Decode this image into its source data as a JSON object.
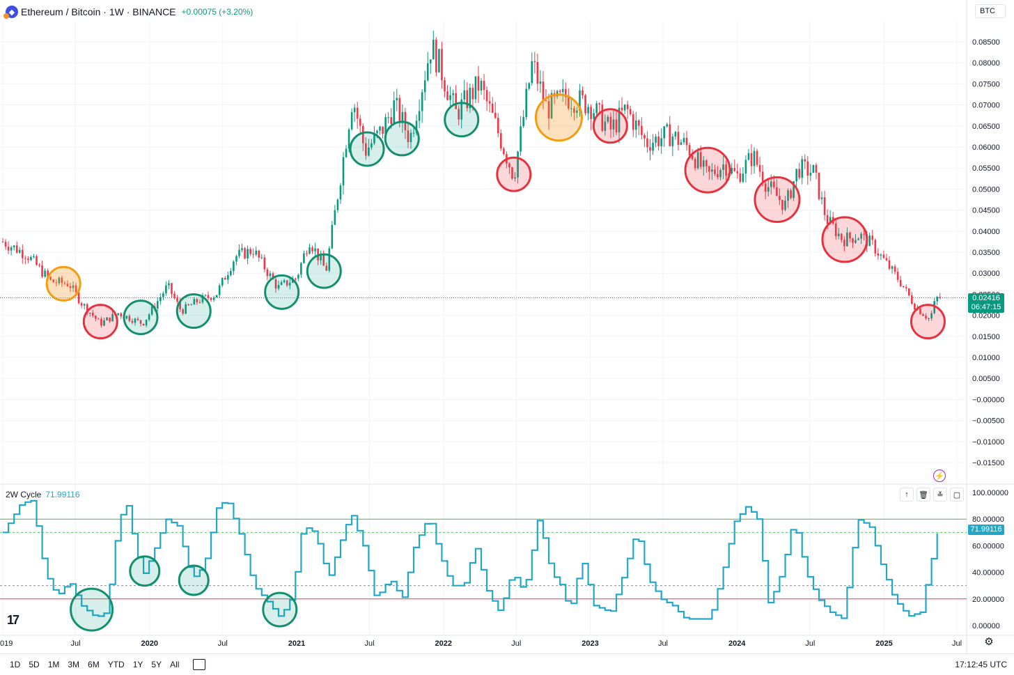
{
  "header": {
    "symbol": "Ethereum",
    "sep": " / ",
    "quote_name": "Bitcoin",
    "meta": " · 1W · BINANCE",
    "change": "+0.00075 (+3.20%)",
    "currency_button": "BTC",
    "logo_icon": "eth-btc-pair-icon"
  },
  "price_axis": {
    "labels": [
      "0.08500",
      "0.08000",
      "0.07500",
      "0.07000",
      "0.06500",
      "0.06000",
      "0.05500",
      "0.05000",
      "0.04500",
      "0.04000",
      "0.03500",
      "0.03000",
      "0.02500",
      "0.02000",
      "0.01500",
      "0.01000",
      "0.00500",
      "−0.00000",
      "−0.00500",
      "−0.01000",
      "−0.01500"
    ],
    "last_price": "0.02416",
    "countdown": "06:47:15"
  },
  "indicator": {
    "name": "2W Cycle",
    "value": "71.99116",
    "axis_labels": [
      "100.00000",
      "80.00000",
      "60.00000",
      "40.00000",
      "20.00000",
      "0.00000"
    ],
    "tools": [
      "arrow-up-icon",
      "trash-icon",
      "collapse-icon",
      "maximize-icon"
    ]
  },
  "time_axis": {
    "labels": [
      "019",
      "Jul",
      "2020",
      "Jul",
      "2021",
      "Jul",
      "2022",
      "Jul",
      "2023",
      "Jul",
      "2024",
      "Jul",
      "2025",
      "Jul"
    ]
  },
  "bottom_bar": {
    "ranges": [
      "1D",
      "5D",
      "1M",
      "3M",
      "6M",
      "YTD",
      "1Y",
      "5Y",
      "All"
    ],
    "clock": "17:12:45 UTC"
  },
  "colors": {
    "up": "#089981",
    "down": "#f23645",
    "orange": "#f7931a",
    "cycle": "#22a7c9",
    "upper_line": "#4caf50",
    "lower_line": "#f23645"
  },
  "chart_data": [
    {
      "type": "candlestick",
      "title": "Ethereum / Bitcoin · 1W · BINANCE",
      "x_range": [
        "2019-01",
        "2025-07"
      ],
      "ylim": [
        -0.017,
        0.0875
      ],
      "grid": true,
      "close_anchors": [
        {
          "date": "2019-01-01",
          "close": 0.0375
        },
        {
          "date": "2019-03-01",
          "close": 0.0345
        },
        {
          "date": "2019-05-01",
          "close": 0.028
        },
        {
          "date": "2019-06-15",
          "close": 0.0275
        },
        {
          "date": "2019-07-15",
          "close": 0.023
        },
        {
          "date": "2019-09-01",
          "close": 0.018
        },
        {
          "date": "2019-10-15",
          "close": 0.0205
        },
        {
          "date": "2019-12-15",
          "close": 0.018
        },
        {
          "date": "2020-02-15",
          "close": 0.027
        },
        {
          "date": "2020-03-20",
          "close": 0.021
        },
        {
          "date": "2020-05-01",
          "close": 0.0235
        },
        {
          "date": "2020-06-15",
          "close": 0.025
        },
        {
          "date": "2020-08-01",
          "close": 0.034
        },
        {
          "date": "2020-09-15",
          "close": 0.0355
        },
        {
          "date": "2020-11-15",
          "close": 0.0265
        },
        {
          "date": "2021-01-01",
          "close": 0.029
        },
        {
          "date": "2021-02-01",
          "close": 0.038
        },
        {
          "date": "2021-03-15",
          "close": 0.0305
        },
        {
          "date": "2021-04-20",
          "close": 0.053
        },
        {
          "date": "2021-05-20",
          "close": 0.072
        },
        {
          "date": "2021-06-20",
          "close": 0.059
        },
        {
          "date": "2021-08-01",
          "close": 0.064
        },
        {
          "date": "2021-09-01",
          "close": 0.07
        },
        {
          "date": "2021-10-10",
          "close": 0.062
        },
        {
          "date": "2021-12-01",
          "close": 0.084
        },
        {
          "date": "2021-12-20",
          "close": 0.08
        },
        {
          "date": "2022-02-01",
          "close": 0.068
        },
        {
          "date": "2022-04-01",
          "close": 0.075
        },
        {
          "date": "2022-05-15",
          "close": 0.064
        },
        {
          "date": "2022-06-25",
          "close": 0.053
        },
        {
          "date": "2022-08-10",
          "close": 0.08
        },
        {
          "date": "2022-09-15",
          "close": 0.069
        },
        {
          "date": "2022-11-01",
          "close": 0.072
        },
        {
          "date": "2023-01-01",
          "close": 0.07
        },
        {
          "date": "2023-02-20",
          "close": 0.064
        },
        {
          "date": "2023-04-01",
          "close": 0.069
        },
        {
          "date": "2023-05-20",
          "close": 0.061
        },
        {
          "date": "2023-07-20",
          "close": 0.063
        },
        {
          "date": "2023-09-01",
          "close": 0.06
        },
        {
          "date": "2023-10-20",
          "close": 0.053
        },
        {
          "date": "2023-12-01",
          "close": 0.056
        },
        {
          "date": "2024-01-01",
          "close": 0.053
        },
        {
          "date": "2024-02-10",
          "close": 0.058
        },
        {
          "date": "2024-03-15",
          "close": 0.051
        },
        {
          "date": "2024-05-01",
          "close": 0.046
        },
        {
          "date": "2024-06-01",
          "close": 0.055
        },
        {
          "date": "2024-07-10",
          "close": 0.054
        },
        {
          "date": "2024-08-10",
          "close": 0.043
        },
        {
          "date": "2024-09-20",
          "close": 0.038
        },
        {
          "date": "2024-11-01",
          "close": 0.039
        },
        {
          "date": "2024-12-01",
          "close": 0.037
        },
        {
          "date": "2025-01-01",
          "close": 0.033
        },
        {
          "date": "2025-02-10",
          "close": 0.028
        },
        {
          "date": "2025-03-20",
          "close": 0.022
        },
        {
          "date": "2025-04-25",
          "close": 0.019
        },
        {
          "date": "2025-05-10",
          "close": 0.024
        },
        {
          "date": "2025-05-22",
          "close": 0.0242
        }
      ],
      "last_price": 0.02416,
      "highlight_circles": [
        {
          "date": "2019-06-01",
          "price": 0.0275,
          "color": "orange"
        },
        {
          "date": "2019-09-01",
          "price": 0.0185,
          "color": "red"
        },
        {
          "date": "2019-12-10",
          "price": 0.0195,
          "color": "green"
        },
        {
          "date": "2020-04-20",
          "price": 0.021,
          "color": "green"
        },
        {
          "date": "2020-11-25",
          "price": 0.0255,
          "color": "green"
        },
        {
          "date": "2021-03-10",
          "price": 0.0305,
          "color": "green"
        },
        {
          "date": "2021-06-25",
          "price": 0.0595,
          "color": "green"
        },
        {
          "date": "2021-09-20",
          "price": 0.062,
          "color": "green"
        },
        {
          "date": "2022-02-15",
          "price": 0.0665,
          "color": "green"
        },
        {
          "date": "2022-06-25",
          "price": 0.0535,
          "color": "red"
        },
        {
          "date": "2022-10-15",
          "price": 0.067,
          "color": "orange"
        },
        {
          "date": "2023-02-20",
          "price": 0.065,
          "color": "red"
        },
        {
          "date": "2023-10-20",
          "price": 0.0545,
          "color": "red"
        },
        {
          "date": "2024-04-10",
          "price": 0.0475,
          "color": "red"
        },
        {
          "date": "2024-09-25",
          "price": 0.038,
          "color": "red"
        },
        {
          "date": "2025-04-20",
          "price": 0.0185,
          "color": "red"
        }
      ]
    },
    {
      "type": "line",
      "title": "2W Cycle",
      "ylim": [
        -5,
        102
      ],
      "reference_lines": [
        80,
        70,
        30,
        20
      ],
      "series": [
        {
          "name": "2W Cycle",
          "points": [
            {
              "date": "2019-01-01",
              "y": 70
            },
            {
              "date": "2019-02-15",
              "y": 92
            },
            {
              "date": "2019-03-15",
              "y": 94
            },
            {
              "date": "2019-04-15",
              "y": 40
            },
            {
              "date": "2019-05-15",
              "y": 22
            },
            {
              "date": "2019-06-15",
              "y": 33
            },
            {
              "date": "2019-07-15",
              "y": 15
            },
            {
              "date": "2019-08-20",
              "y": 6
            },
            {
              "date": "2019-09-15",
              "y": 10
            },
            {
              "date": "2019-10-15",
              "y": 80
            },
            {
              "date": "2019-11-05",
              "y": 90
            },
            {
              "date": "2019-11-25",
              "y": 60
            },
            {
              "date": "2019-12-15",
              "y": 38
            },
            {
              "date": "2020-01-10",
              "y": 55
            },
            {
              "date": "2020-02-10",
              "y": 80
            },
            {
              "date": "2020-03-10",
              "y": 75
            },
            {
              "date": "2020-04-15",
              "y": 35
            },
            {
              "date": "2020-05-15",
              "y": 45
            },
            {
              "date": "2020-06-15",
              "y": 88
            },
            {
              "date": "2020-07-10",
              "y": 95
            },
            {
              "date": "2020-08-10",
              "y": 70
            },
            {
              "date": "2020-09-15",
              "y": 30
            },
            {
              "date": "2020-10-20",
              "y": 18
            },
            {
              "date": "2020-11-20",
              "y": 6
            },
            {
              "date": "2020-12-20",
              "y": 22
            },
            {
              "date": "2021-01-15",
              "y": 75
            },
            {
              "date": "2021-02-15",
              "y": 70
            },
            {
              "date": "2021-03-20",
              "y": 35
            },
            {
              "date": "2021-04-15",
              "y": 60
            },
            {
              "date": "2021-05-15",
              "y": 85
            },
            {
              "date": "2021-06-15",
              "y": 60
            },
            {
              "date": "2021-07-15",
              "y": 20
            },
            {
              "date": "2021-08-20",
              "y": 35
            },
            {
              "date": "2021-09-20",
              "y": 20
            },
            {
              "date": "2021-10-20",
              "y": 60
            },
            {
              "date": "2021-11-25",
              "y": 82
            },
            {
              "date": "2021-12-20",
              "y": 55
            },
            {
              "date": "2022-01-20",
              "y": 30
            },
            {
              "date": "2022-02-20",
              "y": 30
            },
            {
              "date": "2022-03-20",
              "y": 60
            },
            {
              "date": "2022-04-20",
              "y": 25
            },
            {
              "date": "2022-05-20",
              "y": 10
            },
            {
              "date": "2022-06-20",
              "y": 40
            },
            {
              "date": "2022-07-20",
              "y": 25
            },
            {
              "date": "2022-08-25",
              "y": 82
            },
            {
              "date": "2022-09-25",
              "y": 40
            },
            {
              "date": "2022-10-20",
              "y": 30
            },
            {
              "date": "2022-11-10",
              "y": 10
            },
            {
              "date": "2022-12-10",
              "y": 50
            },
            {
              "date": "2023-01-10",
              "y": 15
            },
            {
              "date": "2023-02-20",
              "y": 10
            },
            {
              "date": "2023-03-20",
              "y": 35
            },
            {
              "date": "2023-04-25",
              "y": 72
            },
            {
              "date": "2023-05-25",
              "y": 35
            },
            {
              "date": "2023-06-25",
              "y": 20
            },
            {
              "date": "2023-07-25",
              "y": 15
            },
            {
              "date": "2023-08-25",
              "y": 5
            },
            {
              "date": "2023-09-25",
              "y": 5
            },
            {
              "date": "2023-10-25",
              "y": 5
            },
            {
              "date": "2023-11-25",
              "y": 40
            },
            {
              "date": "2023-12-25",
              "y": 78
            },
            {
              "date": "2024-01-25",
              "y": 90
            },
            {
              "date": "2024-02-20",
              "y": 80
            },
            {
              "date": "2024-03-20",
              "y": 15
            },
            {
              "date": "2024-04-20",
              "y": 40
            },
            {
              "date": "2024-05-20",
              "y": 80
            },
            {
              "date": "2024-06-20",
              "y": 40
            },
            {
              "date": "2024-07-20",
              "y": 20
            },
            {
              "date": "2024-08-20",
              "y": 10
            },
            {
              "date": "2024-09-20",
              "y": 5
            },
            {
              "date": "2024-10-25",
              "y": 80
            },
            {
              "date": "2024-11-25",
              "y": 75
            },
            {
              "date": "2024-12-25",
              "y": 45
            },
            {
              "date": "2025-01-25",
              "y": 20
            },
            {
              "date": "2025-03-01",
              "y": 7
            },
            {
              "date": "2025-04-01",
              "y": 10
            },
            {
              "date": "2025-04-20",
              "y": 38
            },
            {
              "date": "2025-05-15",
              "y": 72
            }
          ]
        }
      ],
      "last_value": 71.99116,
      "highlight_circles": [
        {
          "date": "2019-08-10",
          "y": 12,
          "color": "green"
        },
        {
          "date": "2019-12-20",
          "y": 41,
          "color": "green"
        },
        {
          "date": "2020-04-20",
          "y": 34,
          "color": "green"
        },
        {
          "date": "2020-11-20",
          "y": 12,
          "color": "green"
        }
      ]
    }
  ]
}
